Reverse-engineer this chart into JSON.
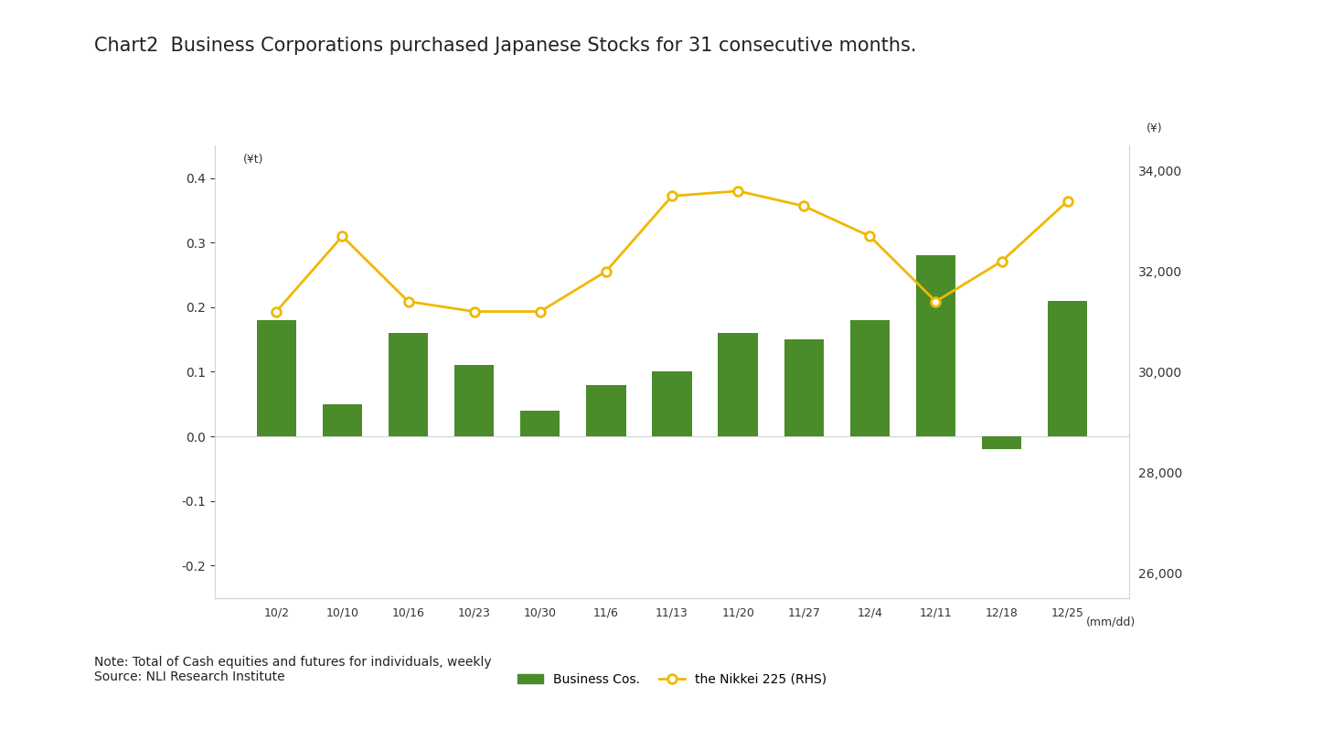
{
  "title": "Chart2  Business Corporations purchased Japanese Stocks for 31 consecutive months.",
  "categories": [
    "10/2",
    "10/10",
    "10/16",
    "10/23",
    "10/30",
    "11/6",
    "11/13",
    "11/20",
    "11/27",
    "12/4",
    "12/11",
    "12/18",
    "12/25"
  ],
  "bar_values": [
    0.18,
    0.05,
    0.16,
    0.11,
    0.04,
    0.08,
    0.1,
    0.16,
    0.15,
    0.18,
    0.28,
    -0.02,
    0.21
  ],
  "nikkei_values": [
    31200,
    32700,
    31400,
    31200,
    31200,
    32000,
    33500,
    33600,
    33300,
    32700,
    31400,
    32200,
    33400
  ],
  "bar_color": "#4a8c2a",
  "line_color": "#f0b800",
  "left_ylim": [
    -0.25,
    0.45
  ],
  "right_ylim": [
    25500,
    34500
  ],
  "left_yticks": [
    -0.2,
    -0.1,
    0.0,
    0.1,
    0.2,
    0.3,
    0.4
  ],
  "right_yticks": [
    26000,
    28000,
    30000,
    32000,
    34000
  ],
  "xlabel_unit": "(mm/dd)",
  "left_ylabel": "(¥t)",
  "right_ylabel": "(¥)",
  "note": "Note: Total of Cash equities and futures for individuals, weekly\nSource: NLI Research Institute",
  "legend_bar": "Business Cos.",
  "legend_line": "the Nikkei 225 (RHS)",
  "background_color": "#ffffff",
  "title_fontsize": 15,
  "axis_fontsize": 10
}
